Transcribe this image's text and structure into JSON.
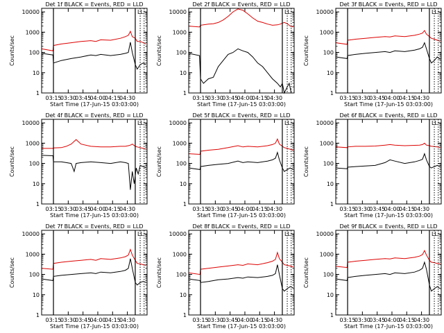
{
  "panels_shared": {
    "ylabel": "Counts/sec",
    "xlabel": "Start Time (17-Jun-15 03:03:00)",
    "x_ticks": [
      "03:15",
      "03:30",
      "03:45",
      "04:00",
      "04:15",
      "04:30"
    ],
    "y_ticks": [
      "1",
      "10",
      "100",
      "1000",
      "10000"
    ],
    "vline_label": "LL",
    "colors": {
      "events": "#000000",
      "lld": "#dd0000"
    }
  },
  "chart_data": [
    {
      "type": "line",
      "title": "Det 1f BLACK = Events, RED = LLD",
      "x_range_minutes": [
        0,
        107
      ],
      "ylim": [
        1,
        15000
      ],
      "y_scale": "log",
      "solid_vlines_minutes": [
        12,
        95
      ],
      "dotted_vlines_minutes": [
        100,
        104
      ],
      "series": [
        {
          "name": "BLACK = Events",
          "color": "#000000",
          "x": [
            0,
            11.5,
            12,
            20,
            30,
            40,
            50,
            55,
            60,
            70,
            80,
            85,
            88,
            90,
            92,
            95,
            97,
            100,
            103,
            106
          ],
          "y": [
            90,
            75,
            30,
            40,
            50,
            60,
            75,
            70,
            80,
            70,
            80,
            90,
            100,
            320,
            100,
            25,
            15,
            25,
            30,
            25
          ]
        },
        {
          "name": "RED = LLD",
          "color": "#dd0000",
          "x": [
            0,
            11.5,
            12,
            20,
            30,
            40,
            50,
            55,
            60,
            70,
            80,
            85,
            88,
            90,
            92,
            95,
            97,
            100,
            103,
            106
          ],
          "y": [
            150,
            120,
            220,
            260,
            300,
            350,
            380,
            350,
            420,
            400,
            500,
            600,
            700,
            1100,
            600,
            500,
            350,
            350,
            300,
            260
          ]
        }
      ]
    },
    {
      "type": "line",
      "title": "Det 2f BLACK = Events, RED = LLD",
      "x_range_minutes": [
        0,
        107
      ],
      "ylim": [
        1,
        15000
      ],
      "y_scale": "log",
      "solid_vlines_minutes": [
        12,
        95
      ],
      "dotted_vlines_minutes": [
        100,
        104
      ],
      "series": [
        {
          "name": "BLACK = Events",
          "color": "#000000",
          "x": [
            0,
            11,
            12,
            15,
            20,
            25,
            30,
            35,
            40,
            45,
            50,
            55,
            60,
            65,
            70,
            75,
            80,
            85,
            90,
            93,
            95,
            97,
            100,
            102,
            104,
            106
          ],
          "y": [
            90,
            70,
            5,
            3,
            5,
            6,
            20,
            40,
            80,
            100,
            150,
            120,
            100,
            60,
            30,
            20,
            10,
            5,
            3,
            2,
            3,
            1,
            2,
            3,
            1,
            1
          ]
        },
        {
          "name": "RED = LLD",
          "color": "#dd0000",
          "x": [
            0,
            11,
            12,
            15,
            20,
            25,
            30,
            35,
            40,
            45,
            50,
            55,
            60,
            65,
            70,
            75,
            80,
            85,
            90,
            93,
            95,
            97,
            100,
            103,
            106
          ],
          "y": [
            2000,
            1800,
            2200,
            2300,
            2500,
            2600,
            3000,
            4000,
            6000,
            10000,
            14000,
            12000,
            8000,
            5000,
            3500,
            3000,
            2500,
            2200,
            2300,
            2500,
            2800,
            3000,
            2600,
            2000,
            1800
          ]
        }
      ]
    },
    {
      "type": "line",
      "title": "Det 3f BLACK = Events, RED = LLD",
      "x_range_minutes": [
        0,
        107
      ],
      "ylim": [
        1,
        15000
      ],
      "y_scale": "log",
      "solid_vlines_minutes": [
        12,
        95
      ],
      "dotted_vlines_minutes": [
        100,
        104
      ],
      "series": [
        {
          "name": "BLACK = Events",
          "color": "#000000",
          "x": [
            0,
            11.5,
            12,
            20,
            30,
            40,
            50,
            55,
            60,
            70,
            80,
            85,
            88,
            90,
            92,
            95,
            97,
            100,
            103,
            106
          ],
          "y": [
            60,
            50,
            70,
            80,
            90,
            100,
            110,
            100,
            120,
            110,
            130,
            150,
            180,
            300,
            150,
            50,
            30,
            40,
            60,
            45
          ]
        },
        {
          "name": "RED = LLD",
          "color": "#dd0000",
          "x": [
            0,
            11.5,
            12,
            20,
            30,
            40,
            50,
            55,
            60,
            70,
            80,
            85,
            88,
            90,
            92,
            95,
            97,
            100,
            103,
            106
          ],
          "y": [
            300,
            250,
            400,
            450,
            500,
            550,
            600,
            580,
            650,
            600,
            700,
            800,
            900,
            1200,
            800,
            600,
            500,
            450,
            400,
            350
          ]
        }
      ]
    },
    {
      "type": "line",
      "title": "Det 4f BLACK = Events, RED = LLD",
      "x_range_minutes": [
        0,
        107
      ],
      "ylim": [
        1,
        15000
      ],
      "y_scale": "log",
      "solid_vlines_minutes": [
        12,
        95
      ],
      "dotted_vlines_minutes": [
        100,
        104
      ],
      "series": [
        {
          "name": "BLACK = Events",
          "color": "#000000",
          "x": [
            0,
            11.5,
            12,
            20,
            25,
            30,
            33,
            35,
            40,
            50,
            60,
            70,
            80,
            85,
            88,
            90,
            92,
            94,
            96,
            98,
            100,
            103,
            106
          ],
          "y": [
            250,
            240,
            120,
            120,
            110,
            100,
            40,
            100,
            110,
            120,
            110,
            100,
            120,
            110,
            100,
            5,
            40,
            10,
            60,
            30,
            80,
            70,
            60
          ]
        },
        {
          "name": "RED = LLD",
          "color": "#dd0000",
          "x": [
            0,
            11.5,
            12,
            20,
            25,
            30,
            35,
            40,
            50,
            60,
            70,
            80,
            85,
            88,
            90,
            92,
            95,
            97,
            100,
            103,
            106
          ],
          "y": [
            550,
            550,
            580,
            600,
            700,
            900,
            1500,
            900,
            700,
            650,
            650,
            700,
            700,
            750,
            800,
            900,
            700,
            650,
            600,
            550,
            500
          ]
        }
      ]
    },
    {
      "type": "line",
      "title": "Det 5f BLACK = Events, RED = LLD",
      "x_range_minutes": [
        0,
        107
      ],
      "ylim": [
        1,
        15000
      ],
      "y_scale": "log",
      "solid_vlines_minutes": [
        12,
        95
      ],
      "dotted_vlines_minutes": [
        100,
        104
      ],
      "series": [
        {
          "name": "BLACK = Events",
          "color": "#000000",
          "x": [
            0,
            11.5,
            12,
            20,
            30,
            40,
            50,
            55,
            60,
            70,
            80,
            85,
            88,
            90,
            92,
            95,
            97,
            100,
            103,
            106
          ],
          "y": [
            60,
            50,
            70,
            80,
            90,
            100,
            130,
            110,
            120,
            110,
            130,
            150,
            180,
            350,
            150,
            60,
            40,
            50,
            60,
            50
          ]
        },
        {
          "name": "RED = LLD",
          "color": "#dd0000",
          "x": [
            0,
            11.5,
            12,
            20,
            30,
            40,
            50,
            55,
            60,
            70,
            80,
            85,
            88,
            90,
            92,
            95,
            97,
            100,
            103,
            106
          ],
          "y": [
            300,
            280,
            400,
            450,
            500,
            600,
            750,
            650,
            700,
            650,
            750,
            850,
            1000,
            1600,
            900,
            700,
            600,
            550,
            500,
            450
          ]
        }
      ]
    },
    {
      "type": "line",
      "title": "Det 6f BLACK = Events, RED = LLD",
      "x_range_minutes": [
        0,
        107
      ],
      "ylim": [
        1,
        15000
      ],
      "y_scale": "log",
      "solid_vlines_minutes": [
        12,
        95
      ],
      "dotted_vlines_minutes": [
        100,
        104
      ],
      "series": [
        {
          "name": "BLACK = Events",
          "color": "#000000",
          "x": [
            0,
            11.5,
            12,
            20,
            30,
            40,
            50,
            55,
            60,
            70,
            80,
            85,
            88,
            90,
            92,
            95,
            97,
            100,
            103,
            106
          ],
          "y": [
            60,
            55,
            65,
            70,
            75,
            80,
            110,
            150,
            130,
            100,
            120,
            140,
            160,
            300,
            150,
            70,
            60,
            70,
            80,
            70
          ]
        },
        {
          "name": "RED = LLD",
          "color": "#dd0000",
          "x": [
            0,
            11.5,
            12,
            20,
            30,
            40,
            50,
            55,
            60,
            70,
            80,
            85,
            88,
            90,
            92,
            95,
            97,
            100,
            103,
            106
          ],
          "y": [
            650,
            600,
            650,
            700,
            700,
            720,
            800,
            850,
            800,
            750,
            780,
            800,
            850,
            1000,
            800,
            750,
            700,
            680,
            650,
            600
          ]
        }
      ]
    },
    {
      "type": "line",
      "title": "Det 7f BLACK = Events, RED = LLD",
      "x_range_minutes": [
        0,
        107
      ],
      "ylim": [
        1,
        15000
      ],
      "y_scale": "log",
      "solid_vlines_minutes": [
        12,
        95
      ],
      "dotted_vlines_minutes": [
        100,
        104
      ],
      "series": [
        {
          "name": "BLACK = Events",
          "color": "#000000",
          "x": [
            0,
            11.5,
            12,
            20,
            30,
            40,
            50,
            55,
            60,
            70,
            80,
            85,
            88,
            90,
            92,
            95,
            97,
            100,
            103,
            106
          ],
          "y": [
            60,
            50,
            80,
            90,
            100,
            110,
            120,
            110,
            130,
            120,
            140,
            160,
            200,
            600,
            200,
            40,
            30,
            40,
            45,
            40
          ]
        },
        {
          "name": "RED = LLD",
          "color": "#dd0000",
          "x": [
            0,
            11.5,
            12,
            20,
            30,
            40,
            50,
            55,
            60,
            70,
            80,
            85,
            88,
            90,
            92,
            95,
            97,
            100,
            103,
            106
          ],
          "y": [
            200,
            180,
            350,
            400,
            450,
            500,
            550,
            500,
            600,
            550,
            650,
            750,
            900,
            1700,
            900,
            500,
            350,
            330,
            300,
            280
          ]
        }
      ]
    },
    {
      "type": "line",
      "title": "Det 8f BLACK = Events, RED = LLD",
      "x_range_minutes": [
        0,
        107
      ],
      "ylim": [
        1,
        15000
      ],
      "y_scale": "log",
      "solid_vlines_minutes": [
        12,
        95
      ],
      "dotted_vlines_minutes": [
        100,
        104
      ],
      "series": [
        {
          "name": "BLACK = Events",
          "color": "#000000",
          "x": [
            0,
            11.5,
            12,
            20,
            30,
            40,
            50,
            55,
            60,
            70,
            80,
            85,
            88,
            90,
            92,
            95,
            97,
            100,
            103,
            106
          ],
          "y": [
            60,
            50,
            40,
            45,
            55,
            60,
            70,
            65,
            75,
            70,
            80,
            90,
            110,
            300,
            100,
            20,
            15,
            20,
            25,
            22
          ]
        },
        {
          "name": "RED = LLD",
          "color": "#dd0000",
          "x": [
            0,
            11.5,
            12,
            20,
            30,
            40,
            50,
            55,
            60,
            70,
            80,
            85,
            88,
            90,
            92,
            95,
            97,
            100,
            103,
            106
          ],
          "y": [
            120,
            100,
            180,
            200,
            230,
            260,
            300,
            280,
            330,
            300,
            380,
            450,
            550,
            1200,
            600,
            400,
            300,
            280,
            260,
            230
          ]
        }
      ]
    },
    {
      "type": "line",
      "title": "Det 9f BLACK = Events, RED = LLD",
      "x_range_minutes": [
        0,
        107
      ],
      "ylim": [
        1,
        15000
      ],
      "y_scale": "log",
      "solid_vlines_minutes": [
        12,
        95
      ],
      "dotted_vlines_minutes": [
        100,
        104
      ],
      "series": [
        {
          "name": "BLACK = Events",
          "color": "#000000",
          "x": [
            0,
            11.5,
            12,
            20,
            30,
            40,
            50,
            55,
            60,
            70,
            80,
            85,
            88,
            90,
            92,
            95,
            97,
            100,
            103,
            106
          ],
          "y": [
            60,
            50,
            70,
            80,
            90,
            100,
            110,
            100,
            120,
            110,
            130,
            160,
            200,
            400,
            180,
            30,
            15,
            20,
            25,
            20
          ]
        },
        {
          "name": "RED = LLD",
          "color": "#dd0000",
          "x": [
            0,
            11.5,
            12,
            20,
            30,
            40,
            50,
            55,
            60,
            70,
            80,
            85,
            88,
            90,
            92,
            95,
            97,
            100,
            103,
            106
          ],
          "y": [
            250,
            220,
            400,
            450,
            500,
            550,
            600,
            580,
            650,
            600,
            700,
            800,
            950,
            1500,
            900,
            500,
            400,
            380,
            350,
            330
          ]
        }
      ]
    }
  ]
}
